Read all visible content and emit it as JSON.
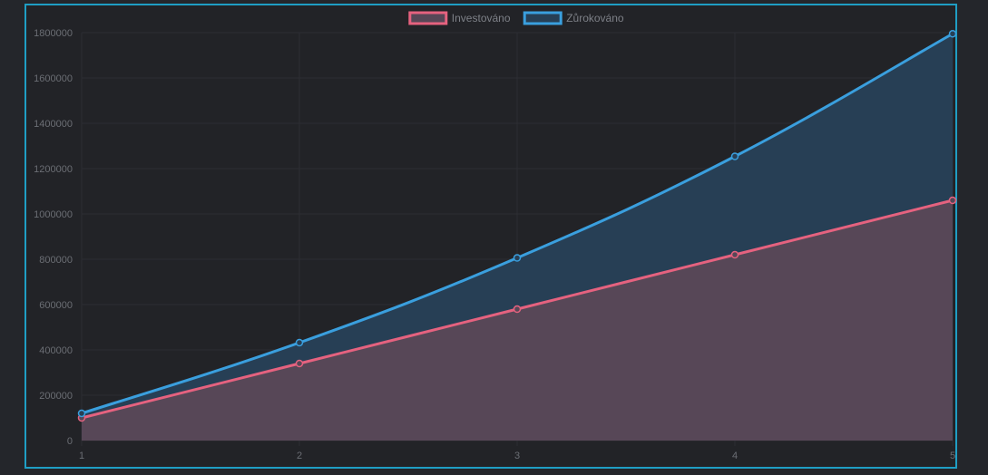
{
  "chart_data": {
    "type": "area",
    "x": [
      1,
      2,
      3,
      4,
      5
    ],
    "series": [
      {
        "name": "Investováno",
        "values": [
          100000,
          340000,
          580000,
          820000,
          1060000
        ],
        "color": "#e5627f",
        "fill": "#574757"
      },
      {
        "name": "Zůrokováno",
        "values": [
          120000,
          432000,
          806000,
          1254000,
          1795000
        ],
        "color": "#3a9fde",
        "fill": "#273f55"
      }
    ],
    "y_ticks": [
      "0",
      "200000",
      "400000",
      "600000",
      "800000",
      "1000000",
      "1200000",
      "1400000",
      "1600000",
      "1800000"
    ],
    "x_ticks": [
      "1",
      "2",
      "3",
      "4",
      "5"
    ],
    "ylim": [
      0,
      1800000
    ],
    "xlim": [
      1,
      5
    ],
    "grid": true,
    "legend_position": "top-center",
    "colors": {
      "background": "#222327",
      "frame_border": "#1f9ec4",
      "grid": "#2c2e33",
      "tick_text": "#6b6e74"
    }
  }
}
